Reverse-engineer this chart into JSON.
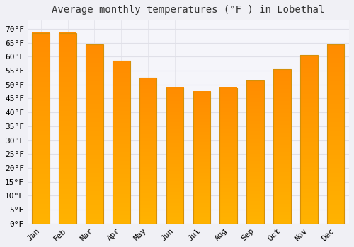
{
  "title": "Average monthly temperatures (°F ) in Lobethal",
  "months": [
    "Jan",
    "Feb",
    "Mar",
    "Apr",
    "May",
    "Jun",
    "Jul",
    "Aug",
    "Sep",
    "Oct",
    "Nov",
    "Dec"
  ],
  "values": [
    68.5,
    68.5,
    64.5,
    58.5,
    52.5,
    49.0,
    47.5,
    49.0,
    51.5,
    55.5,
    60.5,
    64.5
  ],
  "bar_color_top": "#FFB300",
  "bar_color_bottom": "#FF8C00",
  "bar_edge_color": "#D4900A",
  "background_color": "#f0f0f5",
  "plot_bg_color": "#f5f5fa",
  "grid_color": "#e0e0e8",
  "ylim": [
    0,
    73
  ],
  "yticks": [
    0,
    5,
    10,
    15,
    20,
    25,
    30,
    35,
    40,
    45,
    50,
    55,
    60,
    65,
    70
  ],
  "title_fontsize": 10,
  "tick_fontsize": 8,
  "bar_width": 0.65
}
